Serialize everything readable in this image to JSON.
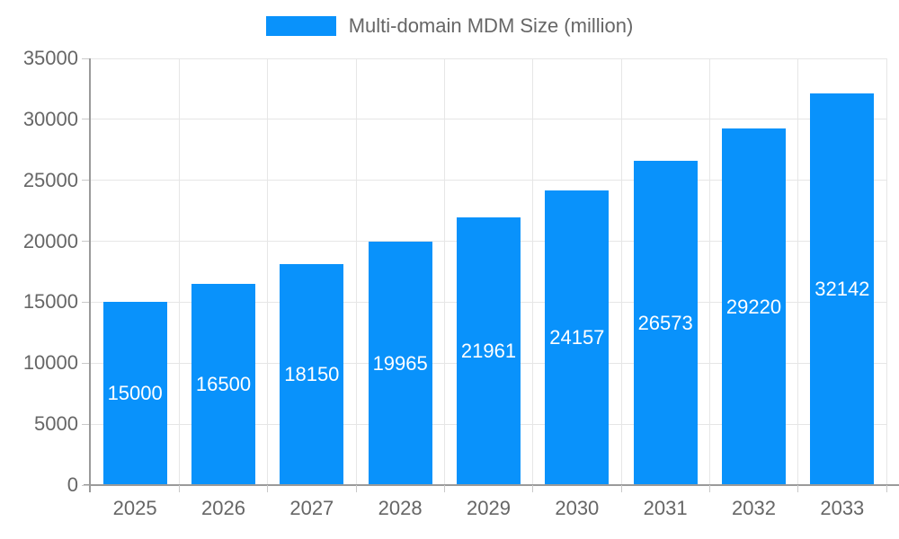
{
  "legend": {
    "label": "Multi-domain MDM Size (million)"
  },
  "chart_data": {
    "type": "bar",
    "title": "",
    "categories": [
      "2025",
      "2026",
      "2027",
      "2028",
      "2029",
      "2030",
      "2031",
      "2032",
      "2033"
    ],
    "series": [
      {
        "name": "Multi-domain MDM Size (million)",
        "values": [
          15000,
          16500,
          18150,
          19965,
          21961,
          24157,
          26573,
          29220,
          32142
        ]
      }
    ],
    "value_labels": [
      "15000",
      "16500",
      "18150",
      "19965",
      "21961",
      "24157",
      "26573",
      "29220",
      "32142"
    ],
    "xlabel": "",
    "ylabel": "",
    "ylim": [
      0,
      35000
    ],
    "y_tick_step": 5000,
    "y_tick_labels": [
      "0",
      "5000",
      "10000",
      "15000",
      "20000",
      "25000",
      "30000",
      "35000"
    ],
    "grid": true,
    "legend_position": "top-center",
    "value_label_position": "inside-center",
    "colors": {
      "bar": "#0992fb",
      "value_label": "#ffffff",
      "axis_text": "#666666",
      "grid": "#e6e6e6",
      "tick": "#c9c9c9",
      "axis_line": "#9a9a9a",
      "background": "#ffffff"
    }
  }
}
